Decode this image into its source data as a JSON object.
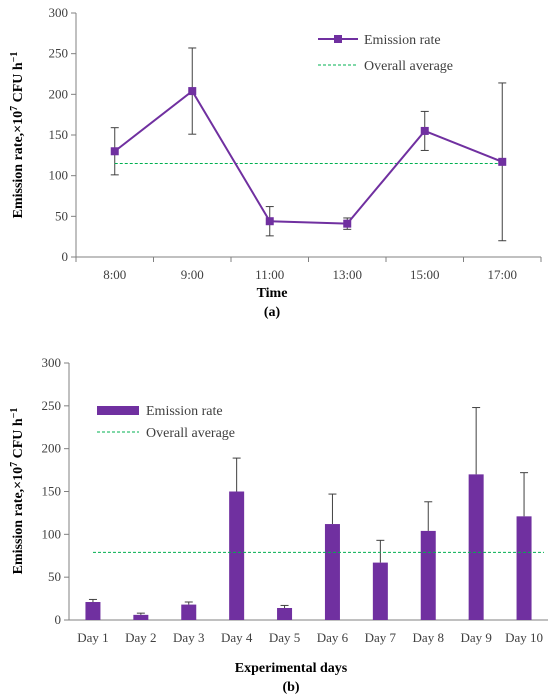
{
  "colors": {
    "series": "#7030a0",
    "average": "#00b050",
    "axis": "#808080",
    "error": "#404040"
  },
  "chart_data": [
    {
      "type": "line",
      "caption": "(a)",
      "categories": [
        "8:00",
        "9:00",
        "11:00",
        "13:00",
        "15:00",
        "17:00"
      ],
      "series": [
        {
          "name": "Emission rate",
          "values": [
            130,
            204,
            44,
            41,
            155,
            117
          ],
          "error": [
            29,
            53,
            18,
            7,
            24,
            97
          ]
        }
      ],
      "average": {
        "name": "Overall average",
        "value": 115
      },
      "yticks": [
        "0",
        "50",
        "100",
        "150",
        "200",
        "250",
        "300"
      ],
      "ylim": [
        0,
        300
      ],
      "xlabel": "Time",
      "ylabel": {
        "main": "Emission rate,×10",
        "sup": "7",
        "unit": " CFU h",
        "unit_sup": "−1"
      },
      "legend": "top-right"
    },
    {
      "type": "bar",
      "caption": "(b)",
      "categories": [
        "Day 1",
        "Day 2",
        "Day 3",
        "Day 4",
        "Day 5",
        "Day 6",
        "Day 7",
        "Day 8",
        "Day 9",
        "Day 10"
      ],
      "series": [
        {
          "name": "Emission rate",
          "values": [
            21,
            6,
            18,
            150,
            14,
            112,
            67,
            104,
            170,
            121
          ],
          "error": [
            3,
            2,
            3,
            39,
            3,
            35,
            26,
            34,
            78,
            51
          ]
        }
      ],
      "average": {
        "name": "Overall average",
        "value": 79
      },
      "yticks": [
        "0",
        "50",
        "100",
        "150",
        "200",
        "250",
        "300"
      ],
      "ylim": [
        0,
        300
      ],
      "xlabel": "Experimental days",
      "ylabel": {
        "main": "Emission rate,×10",
        "sup": "7",
        "unit": "  CFU h",
        "unit_sup": "−1"
      },
      "legend": "top-left"
    }
  ]
}
